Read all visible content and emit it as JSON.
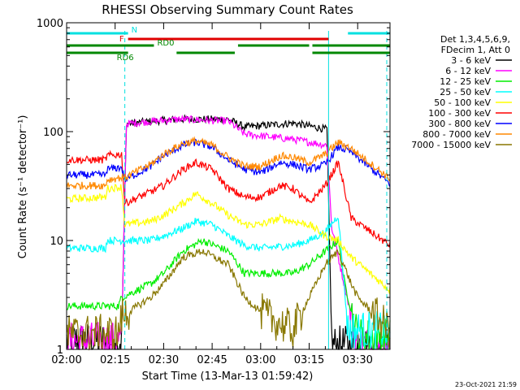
{
  "chart_data": {
    "type": "line",
    "title": "RHESSI Observing Summary Count Rates",
    "xlabel": "Start Time (13-Mar-13 01:59:42)",
    "ylabel": "Count Rate (s⁻¹ detector⁻¹)",
    "yscale": "log",
    "ylim": [
      1,
      1000
    ],
    "xlim_minutes": [
      0,
      100
    ],
    "x_ticks": [
      "02:00",
      "02:15",
      "02:30",
      "02:45",
      "03:00",
      "03:15",
      "03:30"
    ],
    "y_ticks": [
      "1",
      "10",
      "100",
      "1000"
    ],
    "footer_date": "23-Oct-2021 21:59",
    "legend": {
      "header_lines": [
        "Det 1,3,4,5,6,9,",
        "FDecim 1, Att 0"
      ],
      "placement": "right"
    },
    "flags": [
      {
        "label": "N",
        "color": "#00e0e0",
        "segments": [
          [
            0,
            19
          ],
          [
            87,
            100
          ]
        ]
      },
      {
        "label": "F",
        "color": "#e00000",
        "segments": [
          [
            19,
            81
          ]
        ]
      },
      {
        "label": "RD0",
        "color": "#008800",
        "segments": [
          [
            0,
            27
          ],
          [
            53,
            75
          ],
          [
            76,
            100
          ]
        ]
      },
      {
        "label": "RD6",
        "color": "#008800",
        "segments": [
          [
            0,
            19
          ],
          [
            34,
            52
          ],
          [
            76,
            100
          ]
        ]
      }
    ],
    "vertical_lines": [
      {
        "x": 0,
        "style": "solid"
      },
      {
        "x": 18,
        "style": "dashed"
      },
      {
        "x": 81,
        "style": "solid"
      },
      {
        "x": 99,
        "style": "dashed"
      }
    ],
    "series": [
      {
        "name": "3 - 6 keV",
        "color": "#000000",
        "x": [
          0,
          17,
          18.5,
          27,
          35,
          50,
          55,
          70,
          80.5,
          82,
          90,
          100
        ],
        "y": [
          1.2,
          1.2,
          118,
          125,
          130,
          130,
          110,
          120,
          105,
          1.1,
          1.1,
          1.1
        ]
      },
      {
        "name": "6 - 12 keV",
        "color": "#ff00ff",
        "x": [
          0,
          17,
          18.5,
          27,
          35,
          50,
          55,
          70,
          80.5,
          82,
          90,
          100
        ],
        "y": [
          1.2,
          1.2,
          118,
          125,
          130,
          125,
          95,
          85,
          75,
          13,
          1.1,
          1.1
        ]
      },
      {
        "name": "12 - 25 keV",
        "color": "#00ee00",
        "x": [
          0,
          16,
          17,
          26,
          30,
          36,
          42,
          50,
          55,
          62,
          70,
          75,
          80,
          84,
          86,
          90,
          94,
          100
        ],
        "y": [
          2.5,
          2.5,
          3,
          4,
          5,
          8,
          10,
          8,
          5,
          5,
          5,
          6,
          8,
          10,
          4,
          1.3,
          1.3,
          1.3
        ]
      },
      {
        "name": "25 - 50 keV",
        "color": "#00ffff",
        "x": [
          0,
          12,
          12.5,
          17,
          18,
          26,
          30,
          36,
          40,
          45,
          50,
          55,
          60,
          70,
          75,
          80,
          84,
          87,
          100
        ],
        "y": [
          8.5,
          8.5,
          10,
          10,
          10,
          10,
          11,
          13,
          15,
          14,
          11,
          9,
          8.5,
          9,
          10,
          12,
          17,
          1.5,
          1.5
        ]
      },
      {
        "name": "50 - 100 keV",
        "color": "#ffff00",
        "x": [
          0,
          12,
          12.5,
          17,
          18,
          26,
          30,
          36,
          40,
          45,
          50,
          55,
          60,
          66,
          70,
          75,
          80,
          84,
          88,
          100
        ],
        "y": [
          24,
          25,
          30,
          31,
          14,
          15,
          17,
          22,
          27,
          22,
          17,
          14,
          14,
          16,
          15,
          14,
          11,
          10,
          7,
          3.5
        ]
      },
      {
        "name": "100 - 300 keV",
        "color": "#ff0000",
        "x": [
          0,
          12,
          12.5,
          17,
          18,
          26,
          30,
          36,
          40,
          45,
          50,
          55,
          60,
          66,
          70,
          75,
          80,
          84,
          88,
          100
        ],
        "y": [
          55,
          55,
          60,
          62,
          22,
          28,
          32,
          45,
          52,
          45,
          30,
          25,
          25,
          32,
          30,
          22,
          32,
          52,
          16,
          9
        ]
      },
      {
        "name": "300 - 800 keV",
        "color": "#0000ff",
        "x": [
          0,
          12,
          12.5,
          17,
          18,
          26,
          30,
          36,
          40,
          45,
          50,
          55,
          60,
          66,
          70,
          75,
          80,
          84,
          88,
          100
        ],
        "y": [
          40,
          40,
          45,
          47,
          36,
          48,
          60,
          75,
          80,
          72,
          55,
          45,
          42,
          52,
          50,
          45,
          50,
          72,
          65,
          33
        ]
      },
      {
        "name": "800 - 7000 keV",
        "color": "#ff8800",
        "x": [
          0,
          12,
          12.5,
          17,
          18,
          26,
          30,
          36,
          40,
          45,
          50,
          55,
          60,
          66,
          70,
          75,
          80,
          84,
          88,
          100
        ],
        "y": [
          32,
          32,
          36,
          38,
          38,
          50,
          62,
          78,
          82,
          75,
          58,
          48,
          48,
          60,
          58,
          52,
          62,
          80,
          70,
          37
        ]
      },
      {
        "name": "7000 - 15000 keV",
        "color": "#887700",
        "x": [
          0,
          16,
          17,
          26,
          30,
          36,
          42,
          50,
          55,
          62,
          70,
          75,
          80,
          84,
          88,
          90,
          100
        ],
        "y": [
          1.4,
          1.4,
          2,
          3,
          4,
          7,
          8,
          6,
          3,
          2,
          1.5,
          3,
          6,
          8,
          4,
          3,
          1.5
        ]
      }
    ]
  }
}
